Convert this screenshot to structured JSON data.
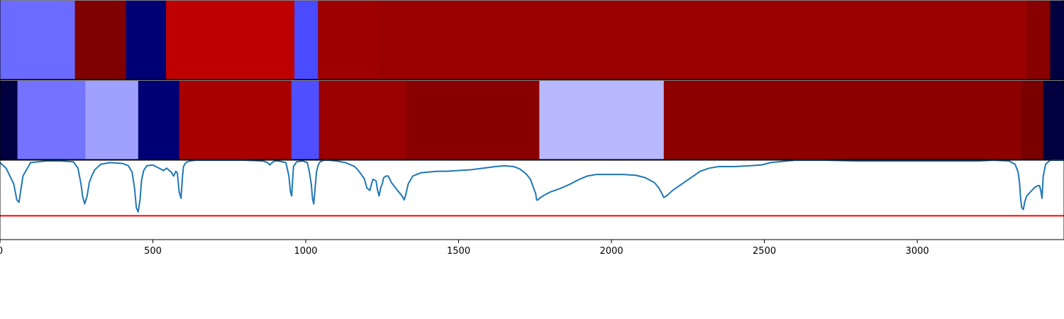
{
  "chart_data": [
    {
      "type": "heatmap",
      "segments": [
        {
          "x0": 0,
          "x1": 245,
          "color": "#6b6bff"
        },
        {
          "x0": 245,
          "x1": 412,
          "color": "#7f0000"
        },
        {
          "x0": 412,
          "x1": 543,
          "color": "#000075"
        },
        {
          "x0": 543,
          "x1": 963,
          "color": "#bf0000"
        },
        {
          "x0": 963,
          "x1": 1040,
          "color": "#4a4aff"
        },
        {
          "x0": 1040,
          "x1": 1238,
          "color": "#9e0000"
        },
        {
          "x0": 1238,
          "x1": 3357,
          "color": "#9b0000"
        },
        {
          "x0": 3357,
          "x1": 3435,
          "color": "#880000"
        },
        {
          "x0": 3435,
          "x1": 3480,
          "color": "#000040"
        }
      ]
    },
    {
      "type": "heatmap",
      "segments": [
        {
          "x0": 0,
          "x1": 57,
          "color": "#000040"
        },
        {
          "x0": 57,
          "x1": 279,
          "color": "#7373ff"
        },
        {
          "x0": 279,
          "x1": 452,
          "color": "#a0a0ff"
        },
        {
          "x0": 452,
          "x1": 586,
          "color": "#000075"
        },
        {
          "x0": 586,
          "x1": 953,
          "color": "#a80000"
        },
        {
          "x0": 953,
          "x1": 1043,
          "color": "#4f4fff"
        },
        {
          "x0": 1043,
          "x1": 1328,
          "color": "#9a0000"
        },
        {
          "x0": 1328,
          "x1": 1764,
          "color": "#8a0000"
        },
        {
          "x0": 1764,
          "x1": 2171,
          "color": "#b8b8ff"
        },
        {
          "x0": 2171,
          "x1": 3340,
          "color": "#8c0000"
        },
        {
          "x0": 3340,
          "x1": 3412,
          "color": "#7a0000"
        },
        {
          "x0": 3412,
          "x1": 3480,
          "color": "#000040"
        }
      ]
    },
    {
      "type": "line",
      "xlim": [
        0,
        3480
      ],
      "ylim": [
        0,
        1
      ],
      "series": [
        {
          "color": "#1f77b4",
          "x": [
            0,
            20,
            45,
            55,
            62,
            75,
            100,
            150,
            200,
            240,
            255,
            265,
            270,
            277,
            285,
            292,
            300,
            310,
            330,
            360,
            400,
            420,
            432,
            440,
            446,
            452,
            458,
            463,
            470,
            480,
            500,
            520,
            535,
            545,
            560,
            568,
            575,
            580,
            586,
            592,
            597,
            600,
            608,
            620,
            640,
            700,
            800,
            860,
            875,
            882,
            890,
            898,
            910,
            935,
            945,
            950,
            954,
            957,
            960,
            970,
            990,
            1005,
            1012,
            1018,
            1022,
            1026,
            1030,
            1035,
            1040,
            1045,
            1048,
            1052,
            1060,
            1075,
            1100,
            1130,
            1160,
            1170,
            1180,
            1185,
            1190,
            1195,
            1200,
            1210,
            1215,
            1220,
            1230,
            1235,
            1240,
            1245,
            1250,
            1255,
            1262,
            1270,
            1280,
            1300,
            1315,
            1322,
            1328,
            1335,
            1350,
            1375,
            1400,
            1430,
            1460,
            1500,
            1540,
            1580,
            1620,
            1650,
            1680,
            1700,
            1720,
            1735,
            1745,
            1752,
            1755,
            1760,
            1764,
            1780,
            1800,
            1830,
            1860,
            1890,
            1920,
            1950,
            2000,
            2040,
            2080,
            2110,
            2140,
            2155,
            2165,
            2171,
            2180,
            2200,
            2230,
            2260,
            2290,
            2320,
            2350,
            2400,
            2450,
            2490,
            2520,
            2600,
            2700,
            2800,
            2900,
            2950,
            3000,
            3050,
            3100,
            3150,
            3200,
            3250,
            3300,
            3320,
            3330,
            3335,
            3338,
            3342,
            3347,
            3352,
            3358,
            3365,
            3375,
            3385,
            3395,
            3400,
            3405,
            3408,
            3412,
            3420,
            3435,
            3450,
            3480
          ],
          "y": [
            0.97,
            0.9,
            0.7,
            0.5,
            0.47,
            0.8,
            0.97,
            0.99,
            0.99,
            0.98,
            0.9,
            0.7,
            0.55,
            0.45,
            0.55,
            0.72,
            0.8,
            0.88,
            0.95,
            0.97,
            0.96,
            0.93,
            0.85,
            0.65,
            0.4,
            0.35,
            0.5,
            0.75,
            0.87,
            0.93,
            0.94,
            0.9,
            0.87,
            0.9,
            0.85,
            0.8,
            0.86,
            0.84,
            0.6,
            0.52,
            0.8,
            0.92,
            0.97,
            0.99,
            1.0,
            1.0,
            1.0,
            0.99,
            0.97,
            0.94,
            0.97,
            0.99,
            0.99,
            0.97,
            0.8,
            0.6,
            0.55,
            0.75,
            0.92,
            0.98,
            0.99,
            0.97,
            0.85,
            0.7,
            0.52,
            0.45,
            0.62,
            0.85,
            0.93,
            0.97,
            0.98,
            0.99,
            1.0,
            1.0,
            0.99,
            0.97,
            0.92,
            0.88,
            0.83,
            0.8,
            0.78,
            0.72,
            0.65,
            0.62,
            0.7,
            0.76,
            0.74,
            0.62,
            0.55,
            0.65,
            0.7,
            0.78,
            0.8,
            0.8,
            0.72,
            0.62,
            0.55,
            0.5,
            0.58,
            0.7,
            0.8,
            0.84,
            0.85,
            0.86,
            0.86,
            0.87,
            0.88,
            0.9,
            0.92,
            0.93,
            0.92,
            0.89,
            0.83,
            0.76,
            0.65,
            0.58,
            0.5,
            0.5,
            0.52,
            0.56,
            0.6,
            0.64,
            0.69,
            0.75,
            0.8,
            0.82,
            0.82,
            0.82,
            0.81,
            0.78,
            0.72,
            0.65,
            0.58,
            0.53,
            0.55,
            0.62,
            0.7,
            0.78,
            0.86,
            0.9,
            0.92,
            0.92,
            0.93,
            0.94,
            0.97,
            1.0,
            1.0,
            0.99,
            0.99,
            0.99,
            0.99,
            0.99,
            0.99,
            0.99,
            0.99,
            1.0,
            0.99,
            0.95,
            0.85,
            0.7,
            0.52,
            0.4,
            0.38,
            0.48,
            0.55,
            0.58,
            0.62,
            0.66,
            0.68,
            0.68,
            0.6,
            0.52,
            0.8,
            0.95,
            1.0,
            1.0,
            1.0
          ]
        }
      ],
      "reference_line": {
        "y": 0.3,
        "color": "#ff0000"
      }
    }
  ],
  "x_axis": {
    "ticks": [
      0,
      500,
      1000,
      1500,
      2000,
      2500,
      3000
    ],
    "tick_labels": [
      "0",
      "500",
      "1000",
      "1500",
      "2000",
      "2500",
      "3000"
    ]
  }
}
